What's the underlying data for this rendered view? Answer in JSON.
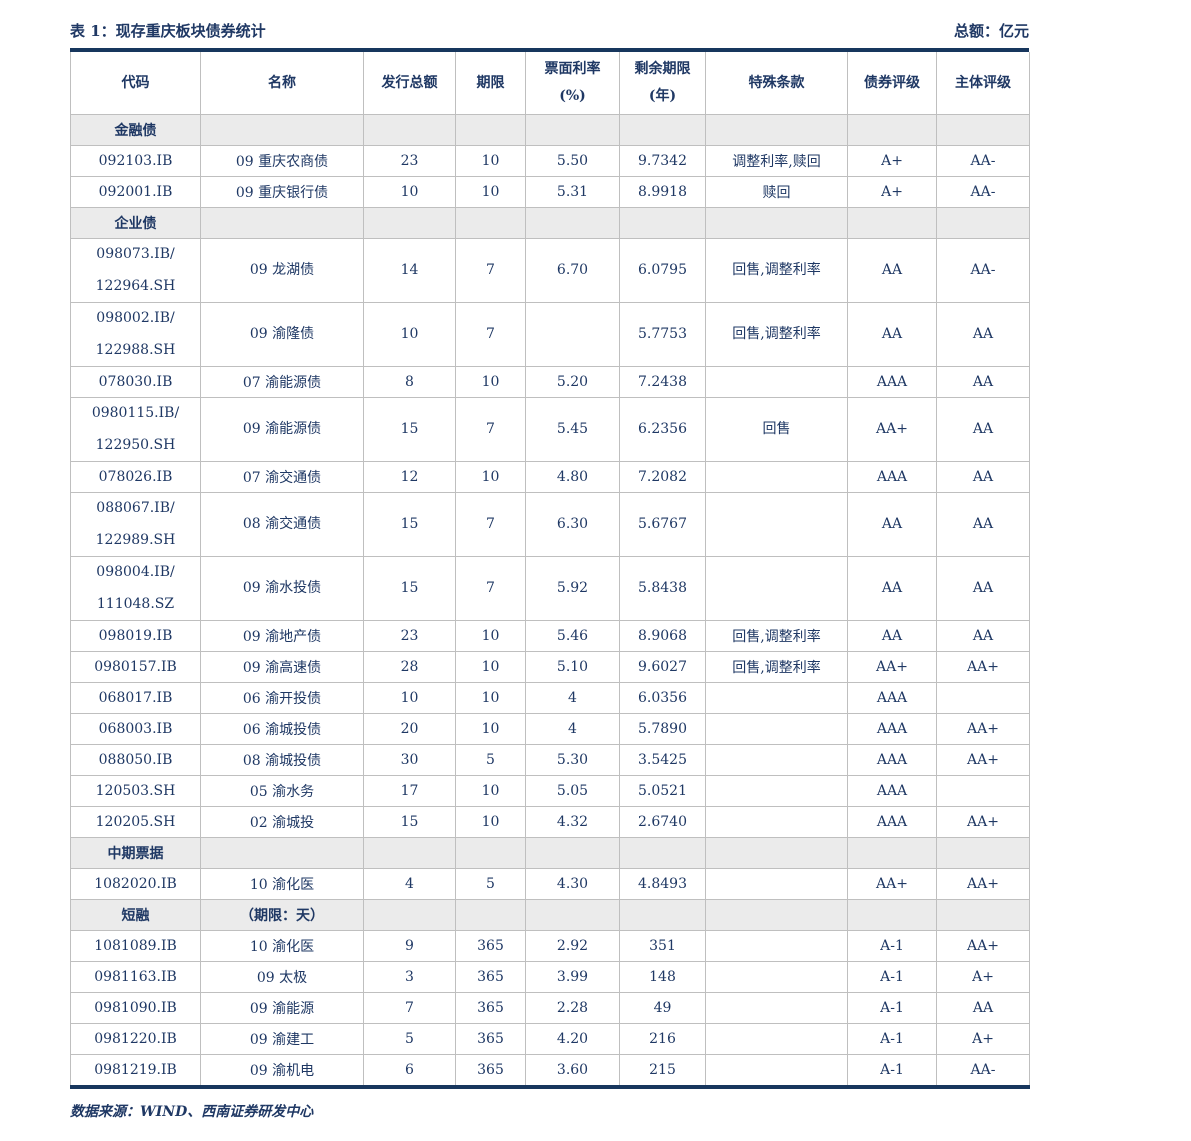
{
  "title": "表 1：现存重庆板块债券统计",
  "unit_note": "总额：亿元",
  "footer": "数据来源：WIND、西南证券研发中心",
  "colors": {
    "text_navy": "#1F3864",
    "rule_navy": "#17365D",
    "grid_line": "#BFBFBF",
    "section_bg": "#EBEBEB"
  },
  "table": {
    "headers": [
      "代码",
      "名称",
      "发行总额",
      "期限",
      "票面利率\n(%)",
      "剩余期限\n(年)",
      "特殊条款",
      "债券评级",
      "主体评级"
    ],
    "rows": [
      {
        "type": "section",
        "tall": false,
        "cells": [
          "金融债",
          "",
          "",
          "",
          "",
          "",
          "",
          "",
          ""
        ]
      },
      {
        "type": "data",
        "tall": false,
        "cells": [
          "092103.IB",
          "09 重庆农商债",
          "23",
          "10",
          "5.50",
          "9.7342",
          "调整利率,赎回",
          "A+",
          "AA-"
        ]
      },
      {
        "type": "data",
        "tall": false,
        "cells": [
          "092001.IB",
          "09 重庆银行债",
          "10",
          "10",
          "5.31",
          "8.9918",
          "赎回",
          "A+",
          "AA-"
        ]
      },
      {
        "type": "section",
        "tall": false,
        "cells": [
          "企业债",
          "",
          "",
          "",
          "",
          "",
          "",
          "",
          ""
        ]
      },
      {
        "type": "data",
        "tall": true,
        "cells": [
          "098073.IB/\n122964.SH",
          "09 龙湖债",
          "14",
          "7",
          "6.70",
          "6.0795",
          "回售,调整利率",
          "AA",
          "AA-"
        ]
      },
      {
        "type": "data",
        "tall": true,
        "cells": [
          "098002.IB/\n122988.SH",
          "09 渝隆债",
          "10",
          "7",
          "",
          "5.7753",
          "回售,调整利率",
          "AA",
          "AA"
        ]
      },
      {
        "type": "data",
        "tall": false,
        "cells": [
          "078030.IB",
          "07 渝能源债",
          "8",
          "10",
          "5.20",
          "7.2438",
          "",
          "AAA",
          "AA"
        ]
      },
      {
        "type": "data",
        "tall": true,
        "cells": [
          "0980115.IB/\n122950.SH",
          "09 渝能源债",
          "15",
          "7",
          "5.45",
          "6.2356",
          "回售",
          "AA+",
          "AA"
        ]
      },
      {
        "type": "data",
        "tall": false,
        "cells": [
          "078026.IB",
          "07 渝交通债",
          "12",
          "10",
          "4.80",
          "7.2082",
          "",
          "AAA",
          "AA"
        ]
      },
      {
        "type": "data",
        "tall": true,
        "cells": [
          "088067.IB/\n122989.SH",
          "08 渝交通债",
          "15",
          "7",
          "6.30",
          "5.6767",
          "",
          "AA",
          "AA"
        ]
      },
      {
        "type": "data",
        "tall": true,
        "cells": [
          "098004.IB/\n111048.SZ",
          "09 渝水投债",
          "15",
          "7",
          "5.92",
          "5.8438",
          "",
          "AA",
          "AA"
        ]
      },
      {
        "type": "data",
        "tall": false,
        "cells": [
          "098019.IB",
          "09 渝地产债",
          "23",
          "10",
          "5.46",
          "8.9068",
          "回售,调整利率",
          "AA",
          "AA"
        ]
      },
      {
        "type": "data",
        "tall": false,
        "cells": [
          "0980157.IB",
          "09 渝高速债",
          "28",
          "10",
          "5.10",
          "9.6027",
          "回售,调整利率",
          "AA+",
          "AA+"
        ]
      },
      {
        "type": "data",
        "tall": false,
        "cells": [
          "068017.IB",
          "06 渝开投债",
          "10",
          "10",
          "4",
          "6.0356",
          "",
          "AAA",
          ""
        ]
      },
      {
        "type": "data",
        "tall": false,
        "cells": [
          "068003.IB",
          "06 渝城投债",
          "20",
          "10",
          "4",
          "5.7890",
          "",
          "AAA",
          "AA+"
        ]
      },
      {
        "type": "data",
        "tall": false,
        "cells": [
          "088050.IB",
          "08 渝城投债",
          "30",
          "5",
          "5.30",
          "3.5425",
          "",
          "AAA",
          "AA+"
        ]
      },
      {
        "type": "data",
        "tall": false,
        "cells": [
          "120503.SH",
          "05 渝水务",
          "17",
          "10",
          "5.05",
          "5.0521",
          "",
          "AAA",
          ""
        ]
      },
      {
        "type": "data",
        "tall": false,
        "cells": [
          "120205.SH",
          "02 渝城投",
          "15",
          "10",
          "4.32",
          "2.6740",
          "",
          "AAA",
          "AA+"
        ]
      },
      {
        "type": "section",
        "tall": false,
        "cells": [
          "中期票据",
          "",
          "",
          "",
          "",
          "",
          "",
          "",
          ""
        ]
      },
      {
        "type": "data",
        "tall": false,
        "cells": [
          "1082020.IB",
          "10 渝化医",
          "4",
          "5",
          "4.30",
          "4.8493",
          "",
          "AA+",
          "AA+"
        ]
      },
      {
        "type": "section",
        "tall": false,
        "cells": [
          "短融",
          "（期限：天）",
          "",
          "",
          "",
          "",
          "",
          "",
          ""
        ]
      },
      {
        "type": "data",
        "tall": false,
        "cells": [
          "1081089.IB",
          "10 渝化医",
          "9",
          "365",
          "2.92",
          "351",
          "",
          "A-1",
          "AA+"
        ]
      },
      {
        "type": "data",
        "tall": false,
        "cells": [
          "0981163.IB",
          "09 太极",
          "3",
          "365",
          "3.99",
          "148",
          "",
          "A-1",
          "A+"
        ]
      },
      {
        "type": "data",
        "tall": false,
        "cells": [
          "0981090.IB",
          "09 渝能源",
          "7",
          "365",
          "2.28",
          "49",
          "",
          "A-1",
          "AA"
        ]
      },
      {
        "type": "data",
        "tall": false,
        "cells": [
          "0981220.IB",
          "09 渝建工",
          "5",
          "365",
          "4.20",
          "216",
          "",
          "A-1",
          "A+"
        ]
      },
      {
        "type": "data",
        "tall": false,
        "cells": [
          "0981219.IB",
          "09 渝机电",
          "6",
          "365",
          "3.60",
          "215",
          "",
          "A-1",
          "AA-"
        ]
      }
    ]
  }
}
